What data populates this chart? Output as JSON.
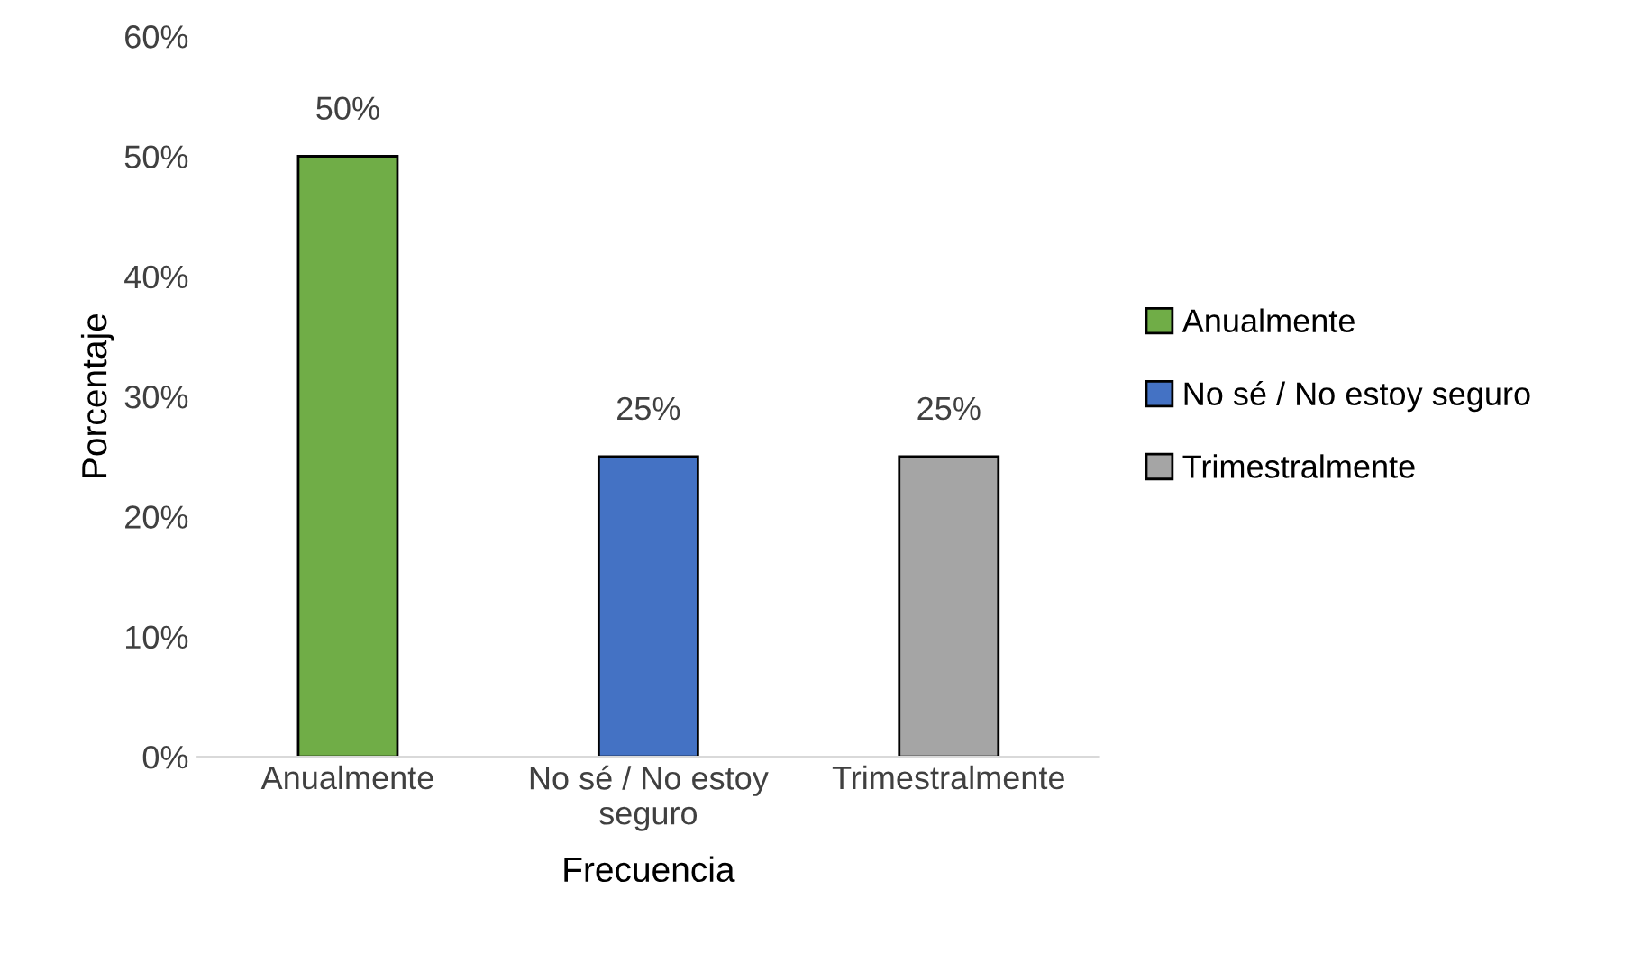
{
  "chart_data": {
    "type": "bar",
    "xlabel": "Frecuencia",
    "ylabel": "Porcentaje",
    "categories": [
      "Anualmente",
      "No sé / No estoy seguro",
      "Trimestralmente"
    ],
    "series": [
      {
        "name": "Anualmente",
        "color": "#70ad47",
        "values": [
          50,
          null,
          null
        ],
        "value_labels": [
          "50%",
          null,
          null
        ]
      },
      {
        "name": "No sé / No estoy seguro",
        "color": "#4472c4",
        "values": [
          null,
          25,
          null
        ],
        "value_labels": [
          null,
          "25%",
          null
        ]
      },
      {
        "name": "Trimestralmente",
        "color": "#a5a5a5",
        "values": [
          null,
          null,
          25
        ],
        "value_labels": [
          null,
          null,
          "25%"
        ]
      }
    ],
    "ylim": [
      0,
      60
    ],
    "yticks": [
      {
        "value": 0,
        "label": "0%"
      },
      {
        "value": 10,
        "label": "10%"
      },
      {
        "value": 20,
        "label": "20%"
      },
      {
        "value": 30,
        "label": "30%"
      },
      {
        "value": 40,
        "label": "40%"
      },
      {
        "value": 50,
        "label": "50%"
      },
      {
        "value": 60,
        "label": "60%"
      }
    ],
    "grid": false,
    "legend": "right"
  }
}
